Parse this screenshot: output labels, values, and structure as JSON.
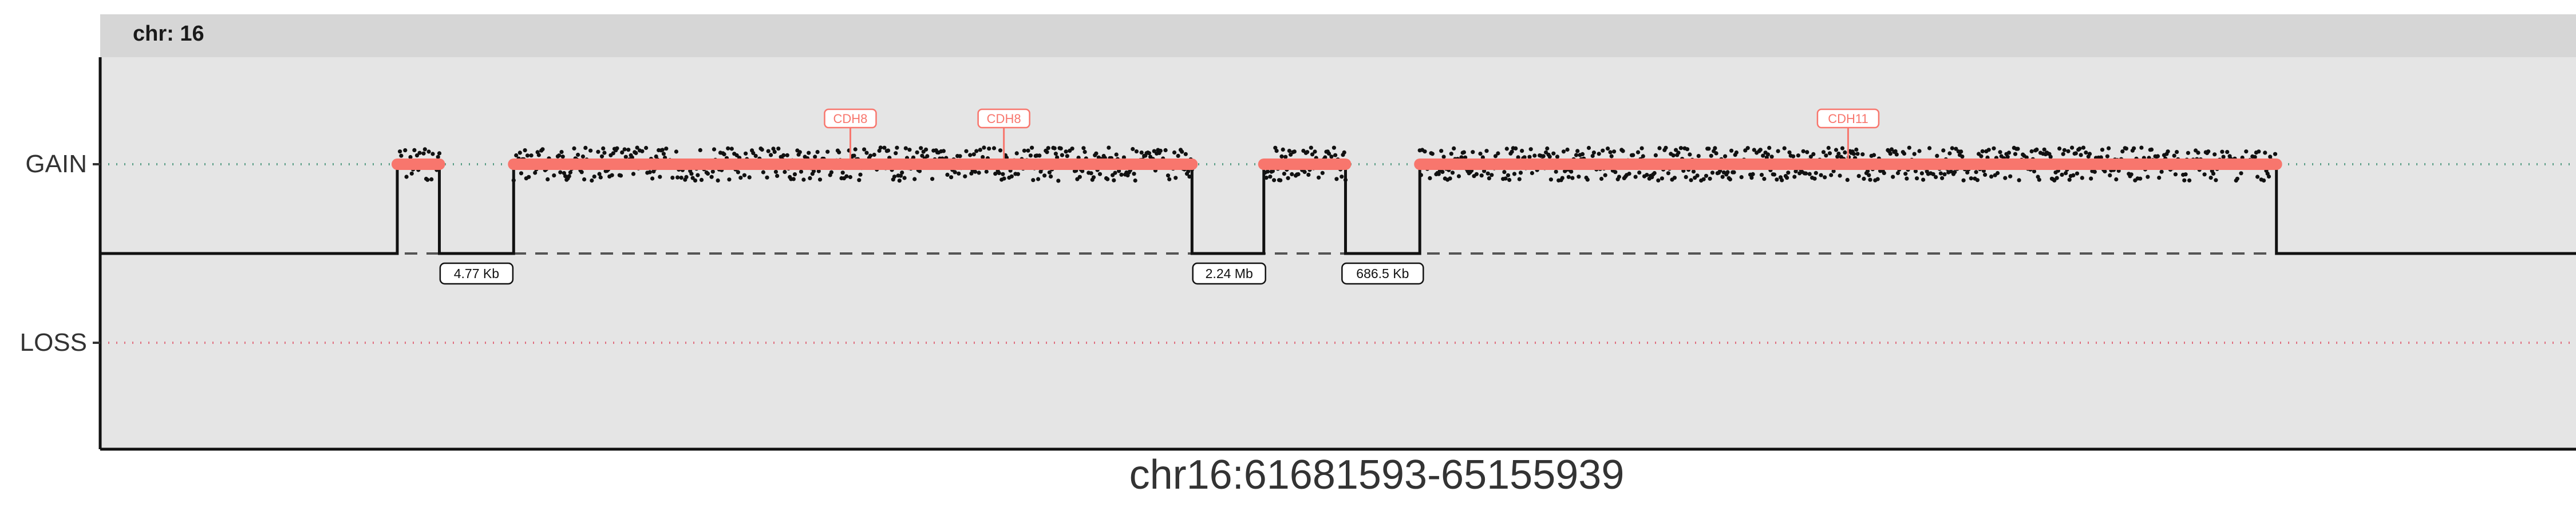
{
  "chart_data": {
    "type": "scatter",
    "facet_label": "chr: 16",
    "xlabel": "chr16:61681593-65155939",
    "ylabel": "",
    "y_levels": [
      "GAIN",
      "LOSS"
    ],
    "grid": false,
    "segments": [
      {
        "start": 0.12,
        "end": 0.137,
        "state": "GAIN"
      },
      {
        "start": 0.167,
        "end": 0.441,
        "state": "GAIN"
      },
      {
        "start": 0.47,
        "end": 0.503,
        "state": "GAIN"
      },
      {
        "start": 0.533,
        "end": 0.879,
        "state": "GAIN"
      }
    ],
    "gap_labels": [
      {
        "label": "4.77 Kb",
        "x": 0.152
      },
      {
        "label": "2.24 Mb",
        "x": 0.456
      },
      {
        "label": "686.5 Kb",
        "x": 0.518
      }
    ],
    "gene_labels": [
      {
        "label": "CDH8",
        "x": 0.303
      },
      {
        "label": "CDH8",
        "x": 0.365
      },
      {
        "label": "CDH11",
        "x": 0.706
      }
    ],
    "colors": {
      "panel_bg": "#e5e5e5",
      "strip_bg": "#d6d6d6",
      "segment": "#f8766d",
      "points": "#111111",
      "gain_line": "#5a9e86",
      "loss_line": "#e07080",
      "gene_label": "#f8766d"
    }
  }
}
